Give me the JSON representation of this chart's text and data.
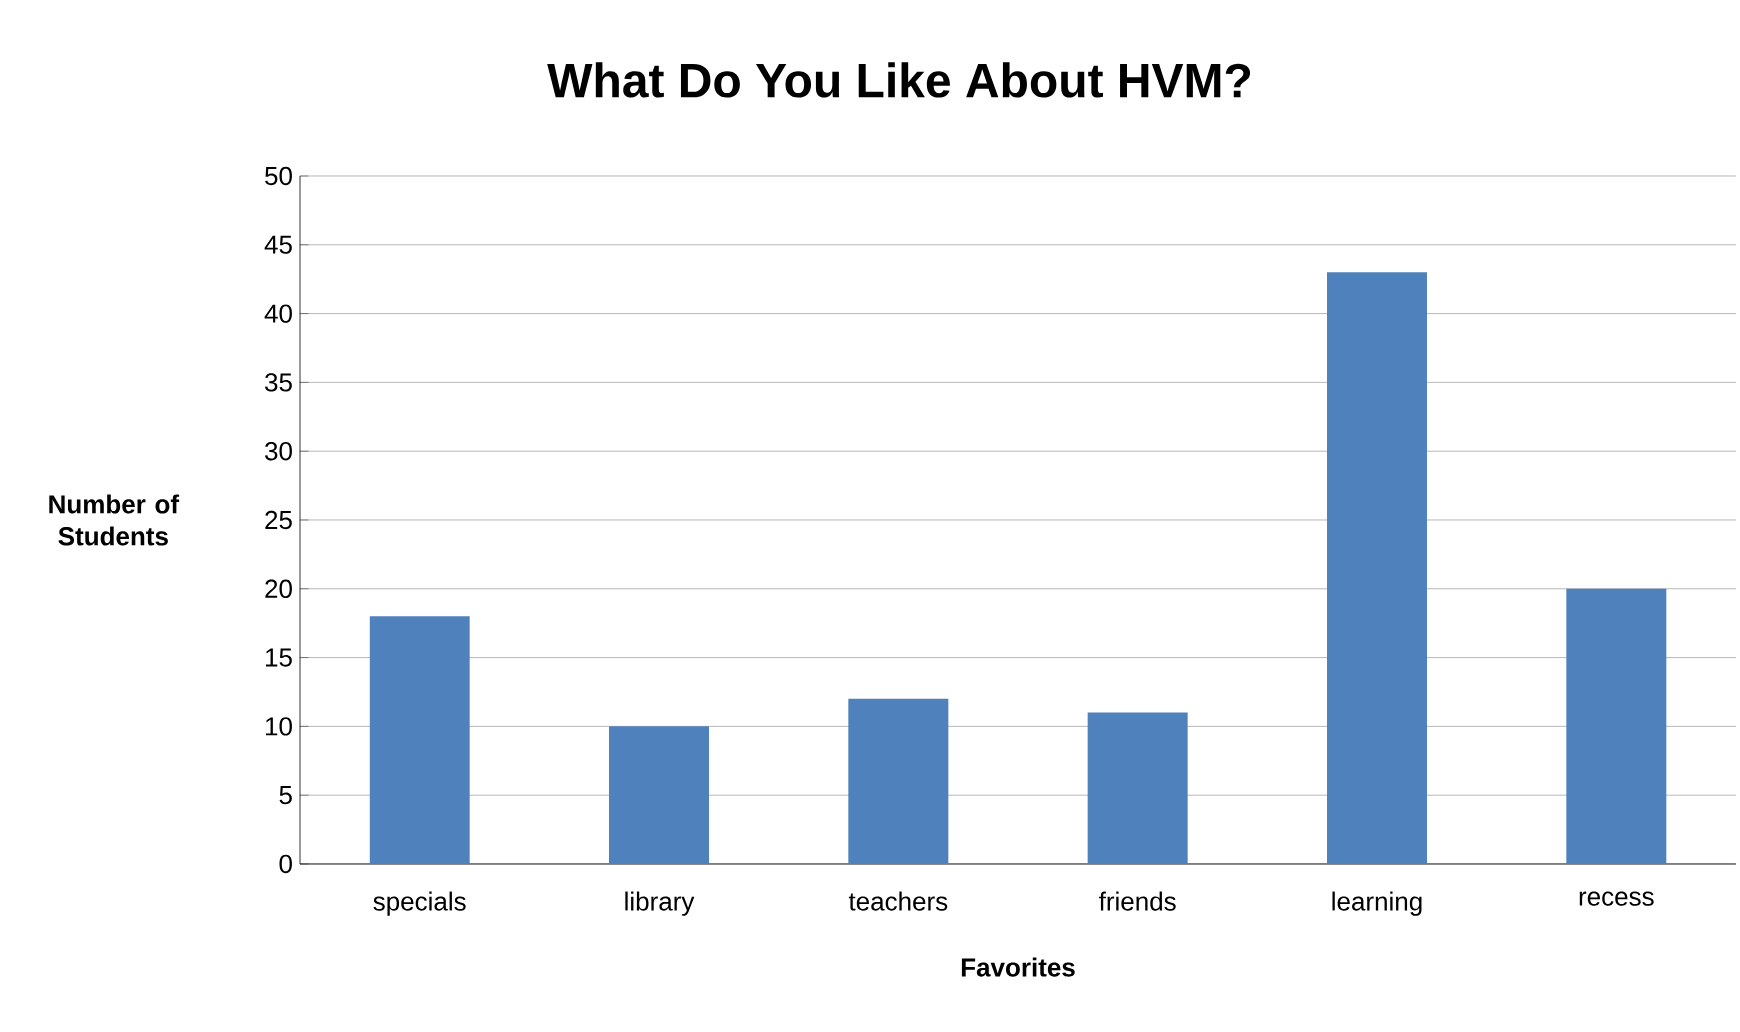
{
  "chart_data": {
    "type": "bar",
    "title": "What Do You Like About HVM?",
    "xlabel": "Favorites",
    "ylabel": "Number of Students",
    "categories": [
      "specials",
      "library",
      "teachers",
      "friends",
      "learning",
      "recess"
    ],
    "values": [
      18,
      10,
      12,
      11,
      43,
      20
    ],
    "color": "#4f81bd",
    "ylim": [
      0,
      50
    ],
    "yticks": [
      0,
      5,
      10,
      15,
      20,
      25,
      30,
      35,
      40,
      45,
      50
    ],
    "grid": "y"
  }
}
